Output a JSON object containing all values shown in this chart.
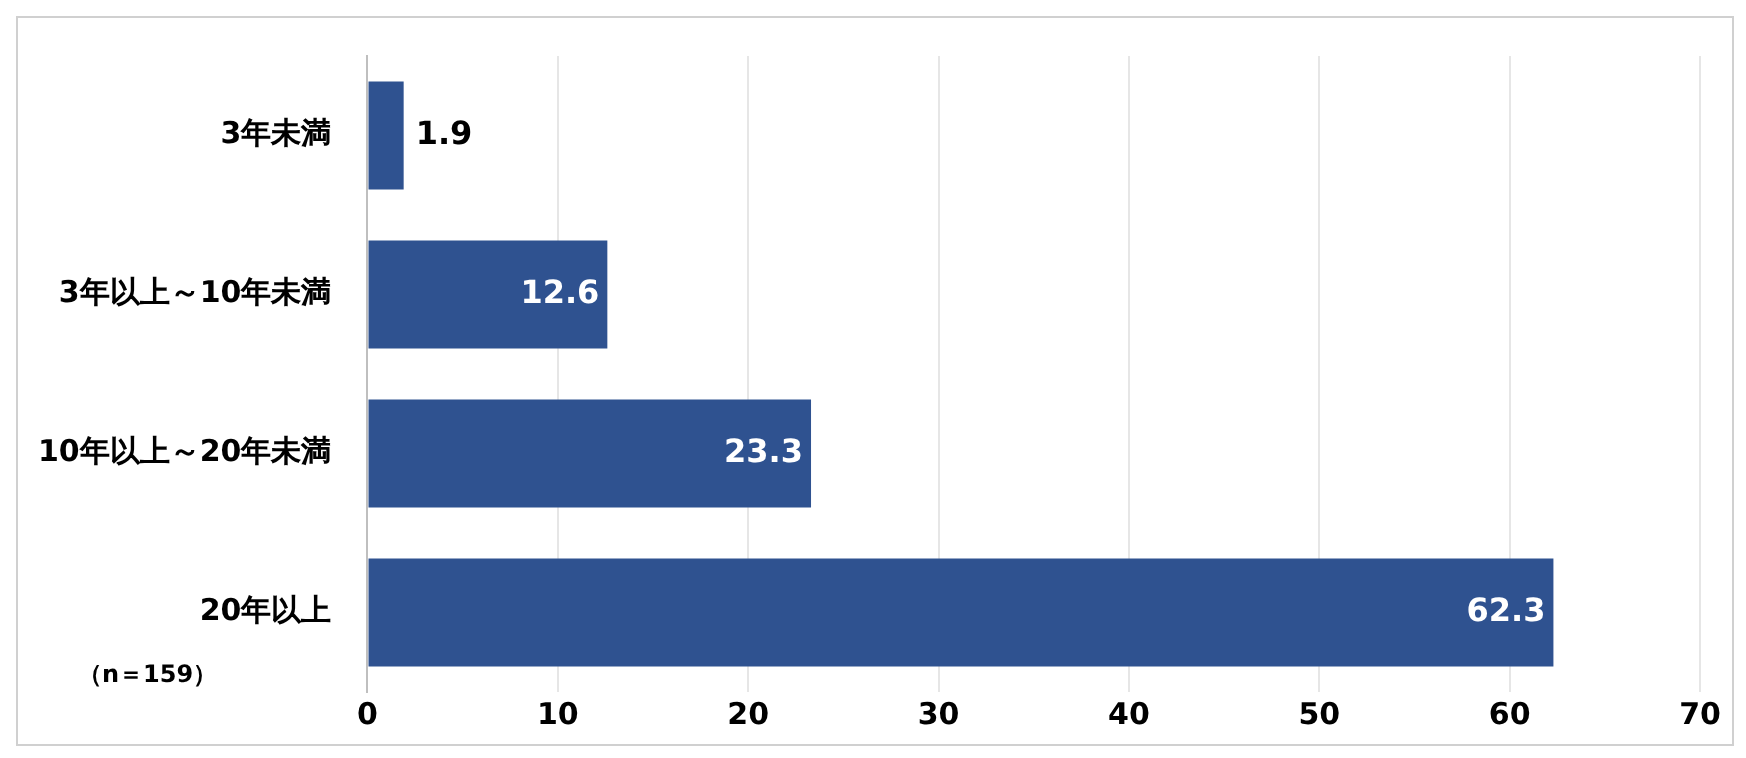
{
  "chart_data": {
    "type": "bar",
    "orientation": "horizontal",
    "categories": [
      "3年未満",
      "3年以上～10年未満",
      "10年以上～20年未満",
      "20年以上"
    ],
    "values": [
      1.9,
      12.6,
      23.3,
      62.3
    ],
    "color": "#2f5290",
    "xlim": [
      0,
      70
    ],
    "xticks": [
      0,
      10,
      20,
      30,
      40,
      50,
      60,
      70
    ],
    "grid": "x",
    "data_labels": true,
    "annotations": [
      "（n＝159）"
    ]
  }
}
